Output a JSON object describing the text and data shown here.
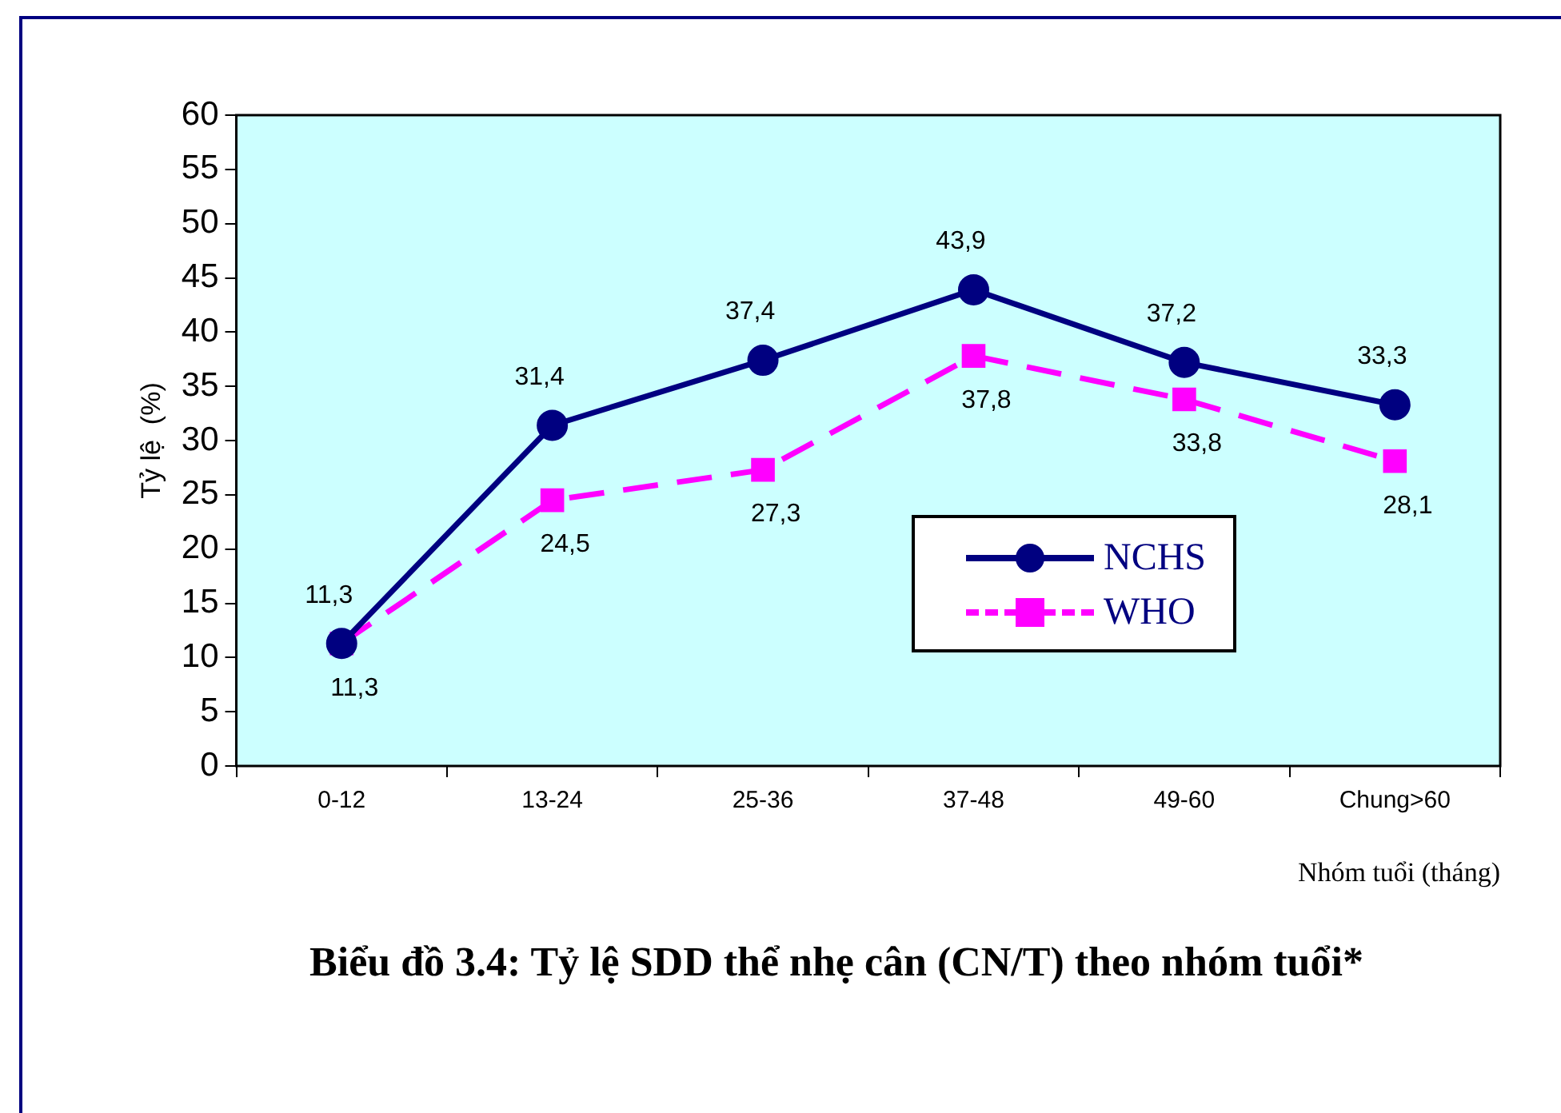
{
  "chart_data": {
    "type": "line",
    "title": "Biểu đồ 3.4: Tỷ lệ SDD thể nhẹ cân (CN/T) theo nhóm tuổi*",
    "xlabel": "Nhóm tuổi (tháng)",
    "ylabel": "Tỷ lệ  (%)",
    "categories": [
      "0-12",
      "13-24",
      "25-36",
      "37-48",
      "49-60",
      "Chung>60"
    ],
    "series": [
      {
        "name": "NCHS",
        "color": "#000080",
        "marker": "circle",
        "line_style": "solid",
        "values": [
          11.3,
          31.4,
          37.4,
          43.9,
          37.2,
          33.3
        ],
        "value_labels": [
          "11,3",
          "31,4",
          "37,4",
          "43,9",
          "37,2",
          "33,3"
        ]
      },
      {
        "name": "WHO",
        "color": "#ff00ff",
        "marker": "square",
        "line_style": "dashed",
        "values": [
          11.3,
          24.5,
          27.3,
          37.8,
          33.8,
          28.1
        ],
        "value_labels": [
          "11,3",
          "24,5",
          "27,3",
          "37,8",
          "33,8",
          "28,1"
        ]
      }
    ],
    "ylim": [
      0,
      60
    ],
    "yticks": [
      0,
      5,
      10,
      15,
      20,
      25,
      30,
      35,
      40,
      45,
      50,
      55,
      60
    ],
    "grid": false,
    "legend": "right"
  }
}
